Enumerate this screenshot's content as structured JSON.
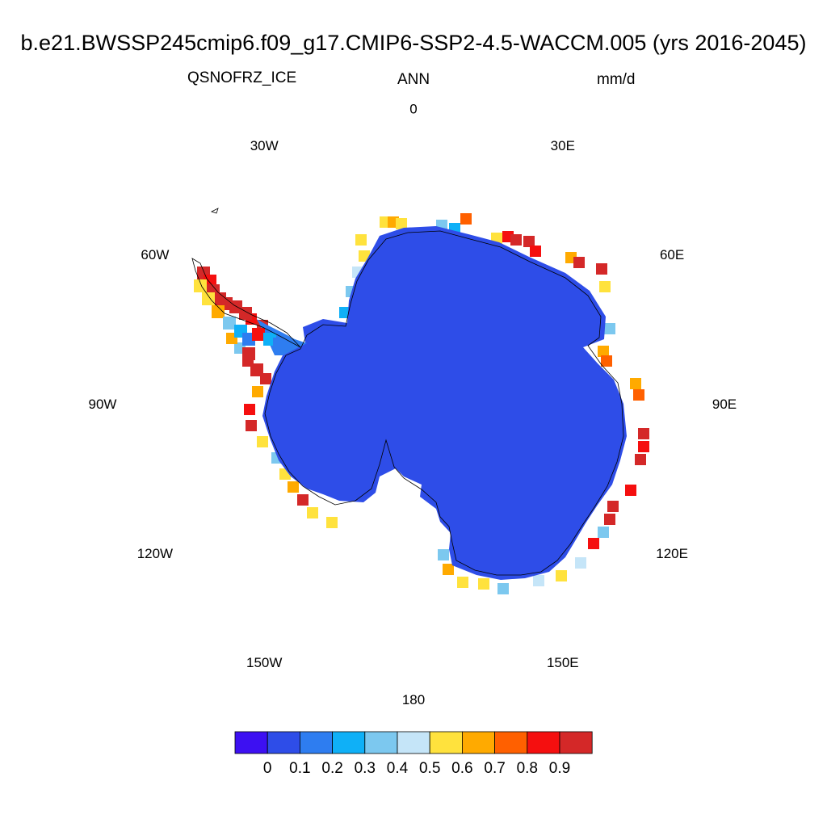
{
  "title": "b.e21.BWSSP245cmip6.f09_g17.CMIP6-SSP2-4.5-WACCM.005 (yrs 2016-2045)",
  "left_label": "QSNOFRZ_ICE",
  "center_label": "ANN",
  "right_label": "mm/d",
  "longitude_labels": [
    "0",
    "30E",
    "60E",
    "90E",
    "120E",
    "150E",
    "180",
    "150W",
    "120W",
    "90W",
    "60W",
    "30W"
  ],
  "colorbar": {
    "colors": [
      "#3d10f2",
      "#2e4de8",
      "#2e7df0",
      "#0fb0f7",
      "#7cc8ef",
      "#c5e5f8",
      "#ffe23d",
      "#ffaa00",
      "#ff6000",
      "#f50f0f",
      "#d42828"
    ],
    "labels": [
      "0",
      "0.1",
      "0.2",
      "0.3",
      "0.4",
      "0.5",
      "0.6",
      "0.7",
      "0.8",
      "0.9"
    ]
  },
  "map": {
    "projection": "south polar stereographic",
    "interior_color": "#2e4de8"
  }
}
